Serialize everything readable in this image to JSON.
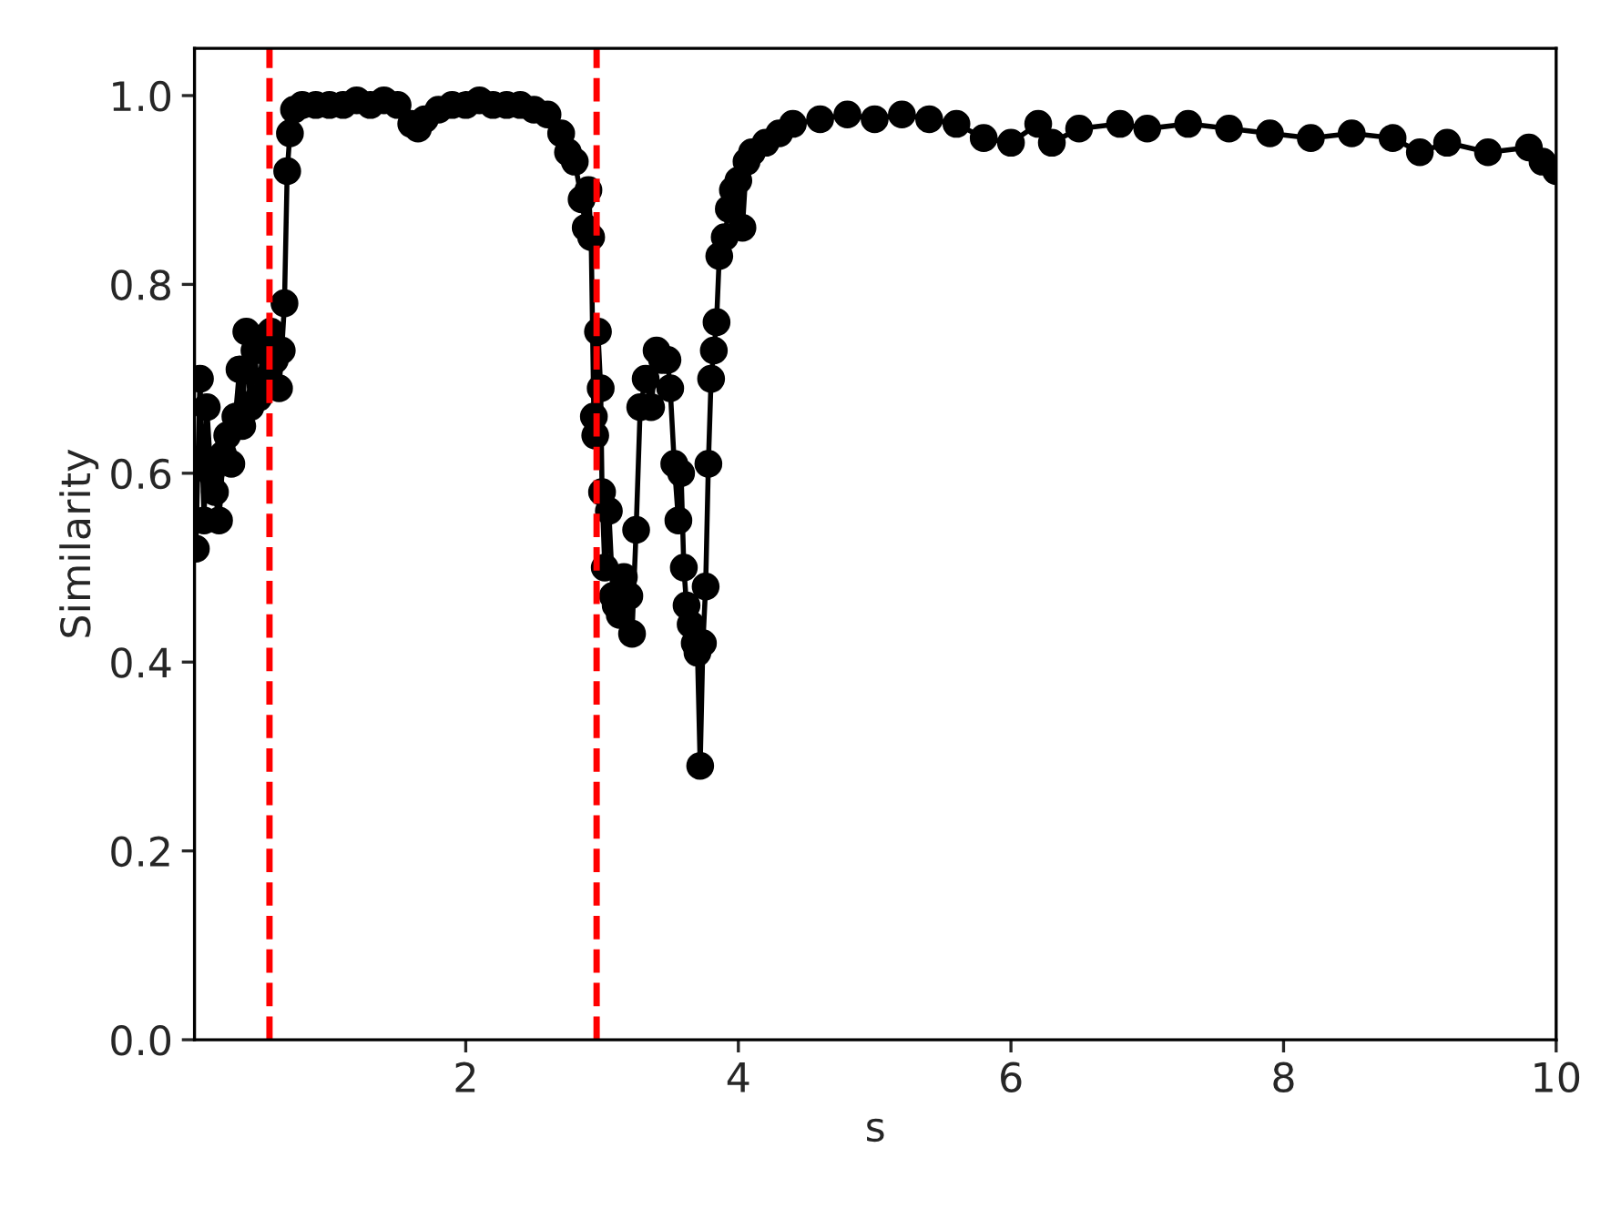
{
  "chart_data": {
    "type": "line",
    "xlabel": "s",
    "ylabel": "Similarity",
    "x": [
      0.02,
      0.05,
      0.08,
      0.1,
      0.13,
      0.16,
      0.19,
      0.22,
      0.25,
      0.28,
      0.31,
      0.34,
      0.36,
      0.39,
      0.42,
      0.45,
      0.48,
      0.51,
      0.54,
      0.57,
      0.6,
      0.63,
      0.65,
      0.67,
      0.69,
      0.71,
      0.74,
      0.8,
      0.9,
      1.0,
      1.1,
      1.2,
      1.3,
      1.4,
      1.5,
      1.6,
      1.65,
      1.7,
      1.8,
      1.9,
      2.0,
      2.1,
      2.2,
      2.3,
      2.4,
      2.5,
      2.6,
      2.7,
      2.75,
      2.8,
      2.85,
      2.88,
      2.9,
      2.92,
      2.94,
      2.95,
      2.97,
      2.99,
      3.0,
      3.02,
      3.05,
      3.08,
      3.1,
      3.13,
      3.16,
      3.2,
      3.22,
      3.25,
      3.28,
      3.32,
      3.36,
      3.4,
      3.44,
      3.48,
      3.5,
      3.53,
      3.56,
      3.58,
      3.6,
      3.62,
      3.65,
      3.68,
      3.7,
      3.72,
      3.74,
      3.76,
      3.78,
      3.8,
      3.82,
      3.84,
      3.86,
      3.9,
      3.93,
      3.96,
      4.0,
      4.03,
      4.06,
      4.1,
      4.2,
      4.3,
      4.4,
      4.6,
      4.8,
      5.0,
      5.2,
      5.4,
      5.6,
      5.8,
      6.0,
      6.2,
      6.3,
      6.5,
      6.8,
      7.0,
      7.3,
      7.6,
      7.9,
      8.2,
      8.5,
      8.8,
      9.0,
      9.2,
      9.5,
      9.8,
      9.9,
      10.0
    ],
    "series": [
      {
        "color": "#000000",
        "values": [
          0.52,
          0.7,
          0.55,
          0.67,
          0.6,
          0.58,
          0.55,
          0.62,
          0.64,
          0.61,
          0.66,
          0.71,
          0.65,
          0.75,
          0.67,
          0.73,
          0.68,
          0.73,
          0.7,
          0.75,
          0.72,
          0.69,
          0.73,
          0.78,
          0.92,
          0.96,
          0.985,
          0.99,
          0.99,
          0.99,
          0.99,
          0.995,
          0.99,
          0.995,
          0.99,
          0.97,
          0.965,
          0.975,
          0.985,
          0.99,
          0.99,
          0.995,
          0.99,
          0.99,
          0.99,
          0.985,
          0.98,
          0.96,
          0.94,
          0.93,
          0.89,
          0.86,
          0.9,
          0.85,
          0.66,
          0.64,
          0.75,
          0.69,
          0.58,
          0.5,
          0.56,
          0.47,
          0.46,
          0.45,
          0.49,
          0.47,
          0.43,
          0.54,
          0.67,
          0.7,
          0.67,
          0.73,
          0.72,
          0.72,
          0.69,
          0.61,
          0.55,
          0.6,
          0.5,
          0.46,
          0.44,
          0.42,
          0.41,
          0.29,
          0.42,
          0.48,
          0.61,
          0.7,
          0.73,
          0.76,
          0.83,
          0.85,
          0.88,
          0.9,
          0.91,
          0.86,
          0.93,
          0.94,
          0.95,
          0.96,
          0.97,
          0.975,
          0.98,
          0.975,
          0.98,
          0.975,
          0.97,
          0.955,
          0.95,
          0.97,
          0.95,
          0.965,
          0.97,
          0.965,
          0.97,
          0.965,
          0.96,
          0.955,
          0.96,
          0.955,
          0.94,
          0.95,
          0.94,
          0.945,
          0.93,
          0.92
        ]
      }
    ],
    "xlim": [
      0.01,
      10
    ],
    "xticks": [
      2,
      4,
      6,
      8,
      10
    ],
    "ylim": [
      0.0,
      1.05
    ],
    "yticks": [
      {
        "value": 0,
        "label": "0.0"
      },
      {
        "value": 0.2,
        "label": "0.2"
      },
      {
        "value": 0.4,
        "label": "0.4"
      },
      {
        "value": 0.6,
        "label": "0.6"
      },
      {
        "value": 0.8,
        "label": "0.8"
      },
      {
        "value": 1.0,
        "label": "1.0"
      }
    ],
    "marker": "circle",
    "line_style": "solid",
    "grid": false,
    "legend": false,
    "ref_lines": [
      {
        "axis": "x",
        "value": 0.56,
        "color": "#ff0000",
        "line_style": "dashed"
      },
      {
        "axis": "x",
        "value": 2.96,
        "color": "#ff0000",
        "line_style": "dashed"
      }
    ]
  }
}
